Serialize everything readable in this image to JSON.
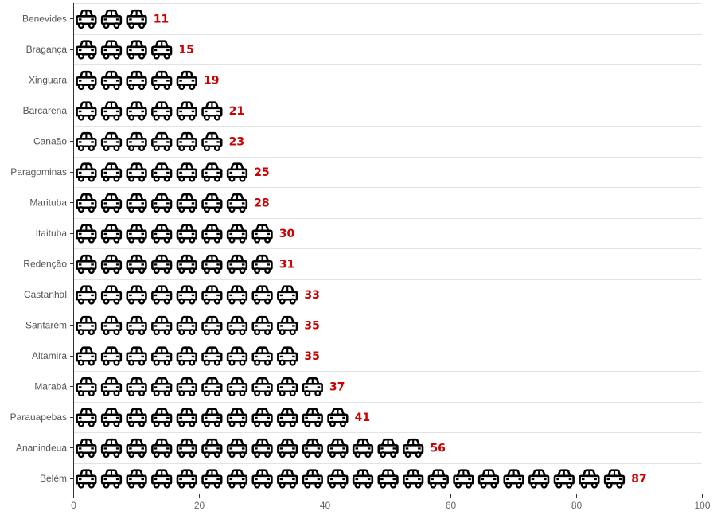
{
  "chart_data": {
    "type": "bar",
    "style": "pictorial",
    "icon": "car-icon",
    "icon_color": "#000000",
    "label_color": "#cc0000",
    "categories": [
      "Benevides",
      "Bragança",
      "Xinguara",
      "Barcarena",
      "Canaão",
      "Paragominas",
      "Marituba",
      "Itaituba",
      "Redenção",
      "Castanhal",
      "Santarém",
      "Altamira",
      "Marabá",
      "Parauapebas",
      "Ananindeua",
      "Belém"
    ],
    "values": [
      11,
      15,
      19,
      21,
      23,
      25,
      28,
      30,
      31,
      33,
      35,
      35,
      37,
      41,
      56,
      87
    ],
    "units_per_icon": 4,
    "xlim": [
      0,
      100
    ],
    "xticks": [
      0,
      20,
      40,
      60,
      80,
      100
    ],
    "title": "",
    "xlabel": "",
    "ylabel": "",
    "grid": true,
    "legend": "none"
  }
}
